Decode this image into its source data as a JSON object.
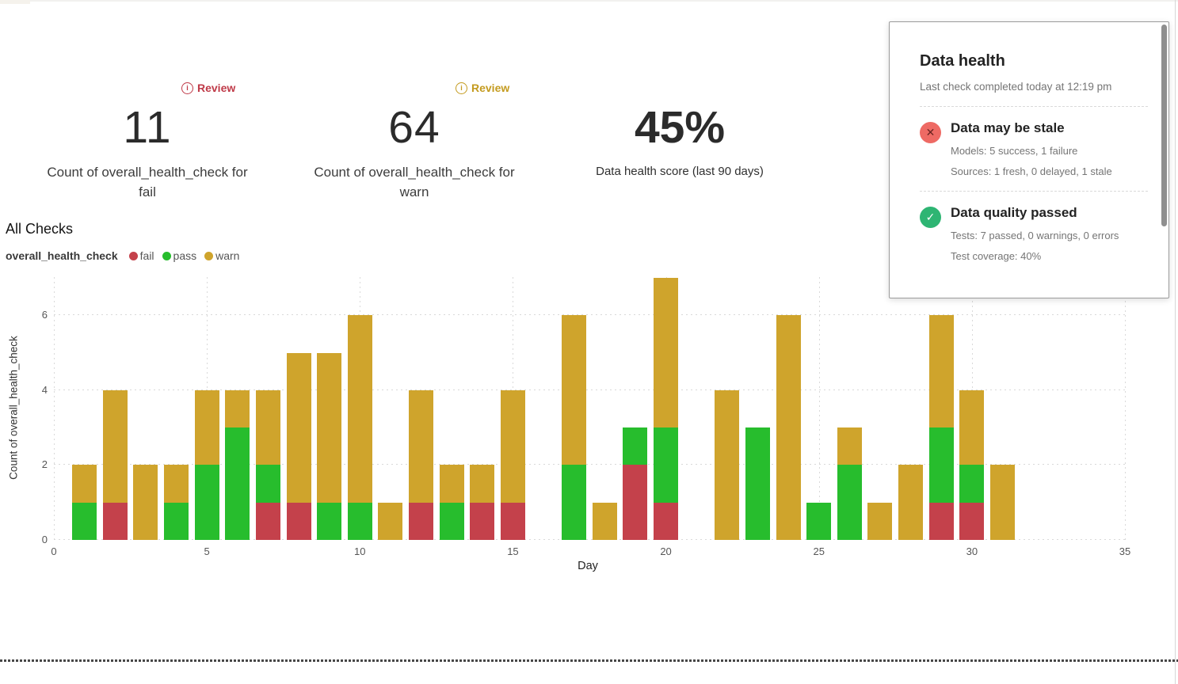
{
  "kpis": [
    {
      "badge": "Review",
      "badge_color": "#bf3a48",
      "value": "11",
      "label": "Count of overall_health_check for fail"
    },
    {
      "badge": "Review",
      "badge_color": "#c49b1f",
      "value": "64",
      "label": "Count of overall_health_check for warn"
    },
    {
      "value": "45%",
      "label": "Data health score (last 90 days)"
    }
  ],
  "section": {
    "title": "All Checks"
  },
  "legend": {
    "title": "overall_health_check",
    "items": [
      {
        "label": "fail",
        "color": "#c4414b"
      },
      {
        "label": "pass",
        "color": "#27bd2d"
      },
      {
        "label": "warn",
        "color": "#cfa42c"
      }
    ]
  },
  "chart_data": {
    "type": "bar",
    "stacked": true,
    "title": "All Checks",
    "xlabel": "Day",
    "ylabel": "Count of overall_health_check",
    "xlim": [
      0,
      35
    ],
    "ylim": [
      0,
      7
    ],
    "x_ticks": [
      0,
      5,
      10,
      15,
      20,
      25,
      30,
      35
    ],
    "y_ticks": [
      0,
      2,
      4,
      6
    ],
    "grid": "dotted",
    "legend_position": "top-left",
    "x": [
      1,
      2,
      3,
      4,
      5,
      6,
      7,
      8,
      9,
      10,
      11,
      12,
      13,
      14,
      15,
      16,
      17,
      18,
      19,
      20,
      21,
      22,
      23,
      24,
      25,
      26,
      27,
      28,
      29,
      30,
      31
    ],
    "series": [
      {
        "name": "fail",
        "color": "#c4414b",
        "values": [
          0,
          1,
          0,
          0,
          0,
          0,
          1,
          1,
          0,
          0,
          0,
          1,
          0,
          1,
          1,
          0,
          0,
          0,
          2,
          1,
          0,
          0,
          0,
          0,
          0,
          0,
          0,
          0,
          1,
          1,
          0
        ]
      },
      {
        "name": "pass",
        "color": "#27bd2d",
        "values": [
          1,
          0,
          0,
          1,
          2,
          3,
          1,
          0,
          1,
          1,
          0,
          0,
          1,
          0,
          0,
          0,
          2,
          0,
          1,
          2,
          0,
          0,
          3,
          0,
          1,
          2,
          0,
          0,
          2,
          1,
          0
        ]
      },
      {
        "name": "warn",
        "color": "#cfa42c",
        "values": [
          1,
          3,
          2,
          1,
          2,
          1,
          2,
          4,
          4,
          5,
          1,
          3,
          1,
          1,
          3,
          0,
          4,
          1,
          0,
          4,
          0,
          4,
          0,
          6,
          0,
          1,
          1,
          2,
          3,
          2,
          2
        ]
      }
    ]
  },
  "panel": {
    "title": "Data health",
    "subtitle": "Last check completed today at 12:19 pm",
    "sections": [
      {
        "status": "error",
        "icon": "x-circle-icon",
        "heading": "Data may be stale",
        "lines": [
          "Models: 5 success, 1 failure",
          "Sources: 1 fresh, 0 delayed, 1 stale"
        ]
      },
      {
        "status": "success",
        "icon": "check-circle-icon",
        "heading": "Data quality passed",
        "lines": [
          "Tests: 7 passed, 0 warnings, 0 errors",
          "Test coverage: 40%"
        ]
      }
    ]
  },
  "colors": {
    "fail": "#c4414b",
    "pass": "#27bd2d",
    "warn": "#cfa42c",
    "error_icon_bg": "#ee6a64",
    "error_icon_glyph": "#6b2421",
    "success_icon_bg": "#2eb573",
    "success_icon_glyph": "#ffffff"
  }
}
